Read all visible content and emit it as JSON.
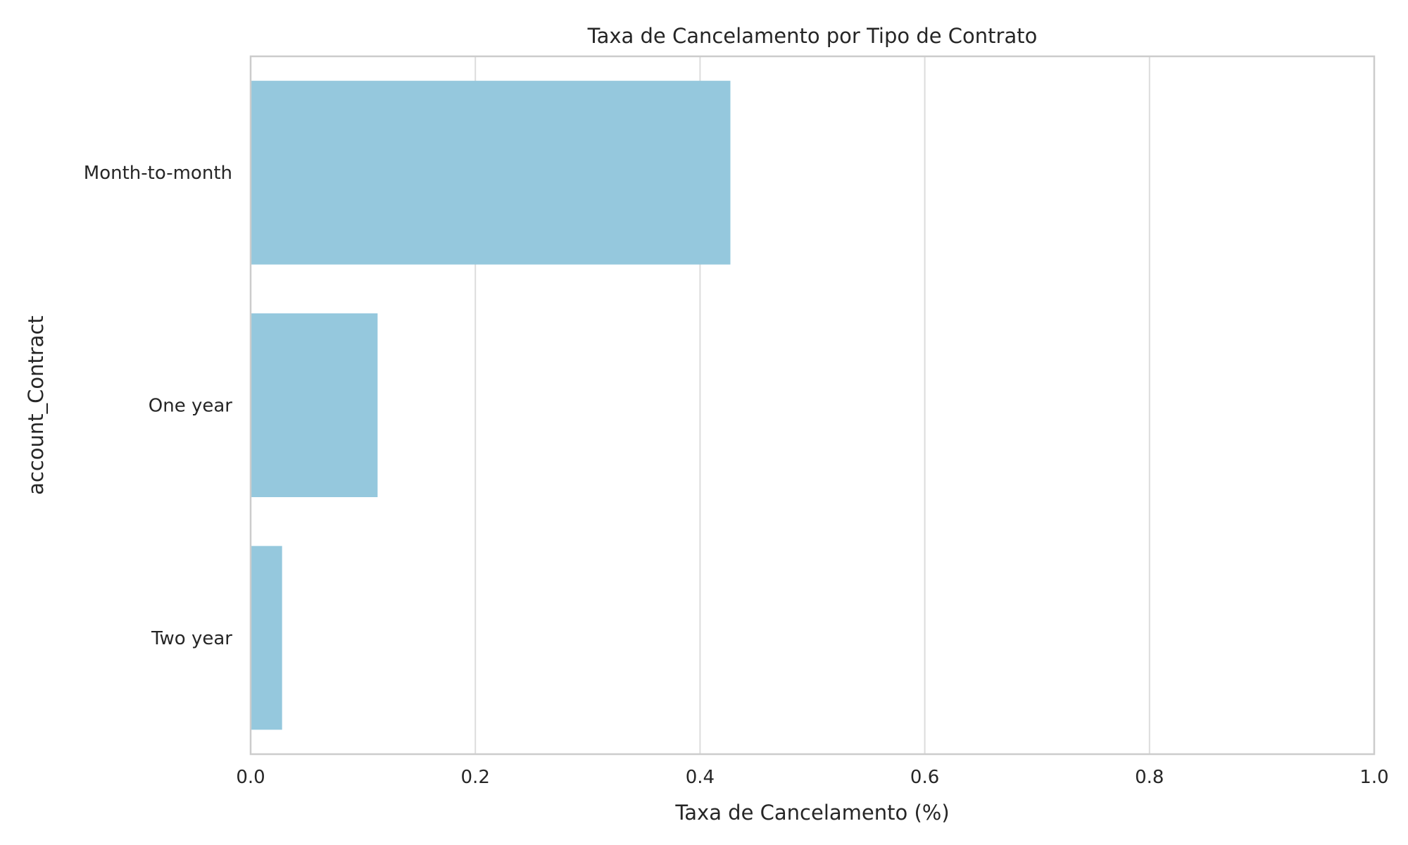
{
  "chart_data": {
    "type": "bar",
    "orientation": "horizontal",
    "title": "Taxa de Cancelamento por Tipo de Contrato",
    "xlabel": "Taxa de Cancelamento (%)",
    "ylabel": "account_Contract",
    "categories": [
      "Month-to-month",
      "One year",
      "Two year"
    ],
    "values": [
      0.427,
      0.113,
      0.028
    ],
    "xlim": [
      0,
      1.0
    ],
    "xticks": [
      "0.0",
      "0.2",
      "0.4",
      "0.6",
      "0.8",
      "1.0"
    ],
    "grid": "vertical",
    "bar_color": "#95c8dd",
    "grid_color": "#dcdcdc",
    "spine_color": "#cccccc"
  }
}
